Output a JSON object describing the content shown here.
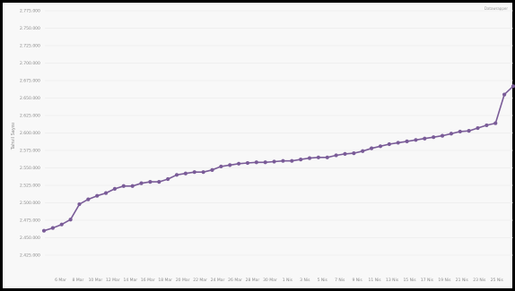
{
  "chart_data": {
    "type": "line",
    "title": "",
    "xlabel": "",
    "ylabel": "Tahvil Sayısı",
    "credit": "Datawrapper",
    "color": "#7a5c98",
    "ylim": [
      2425000,
      2775000
    ],
    "yticks": [
      2425000,
      2450000,
      2475000,
      2500000,
      2525000,
      2550000,
      2575000,
      2600000,
      2625000,
      2650000,
      2675000,
      2700000,
      2725000,
      2750000,
      2775000
    ],
    "ytick_labels": [
      "2.425.000",
      "2.450.000",
      "2.475.000",
      "2.500.000",
      "2.525.000",
      "2.550.000",
      "2.575.000",
      "2.600.000",
      "2.625.000",
      "2.650.000",
      "2.675.000",
      "2.700.000",
      "2.725.000",
      "2.750.000",
      "2.775.000"
    ],
    "xtick_labels": [
      "6 Mar",
      "8 Mar",
      "10 Mar",
      "12 Mar",
      "14 Mar",
      "16 Mar",
      "18 Mar",
      "20 Mar",
      "22 Mar",
      "24 Mar",
      "26 Mar",
      "28 Mar",
      "30 Mar",
      "1 Nis",
      "3 Nis",
      "5 Nis",
      "7 Nis",
      "9 Nis",
      "11 Nis",
      "13 Nis",
      "15 Nis",
      "17 Nis",
      "19 Nis",
      "21 Nis",
      "23 Nis",
      "25 Nis"
    ],
    "series": [
      {
        "values": [
          2460000,
          2464000,
          2469000,
          2476000,
          2498000,
          2505000,
          2510000,
          2514000,
          2520000,
          2524000,
          2524000,
          2528000,
          2530000,
          2530000,
          2534000,
          2540000,
          2542000,
          2544000,
          2544000,
          2547000,
          2552000,
          2554000,
          2556000,
          2557000,
          2558000,
          2558000,
          2559000,
          2560000,
          2560000,
          2562000,
          2564000,
          2565000,
          2565000,
          2568000,
          2570000,
          2571000,
          2574000,
          2578000,
          2581000,
          2584000,
          2586000,
          2588000,
          2590000,
          2592000,
          2594000,
          2596000,
          2599000,
          2602000,
          2603000,
          2607000,
          2611000,
          2614000,
          2655000,
          2667000
        ]
      }
    ]
  }
}
